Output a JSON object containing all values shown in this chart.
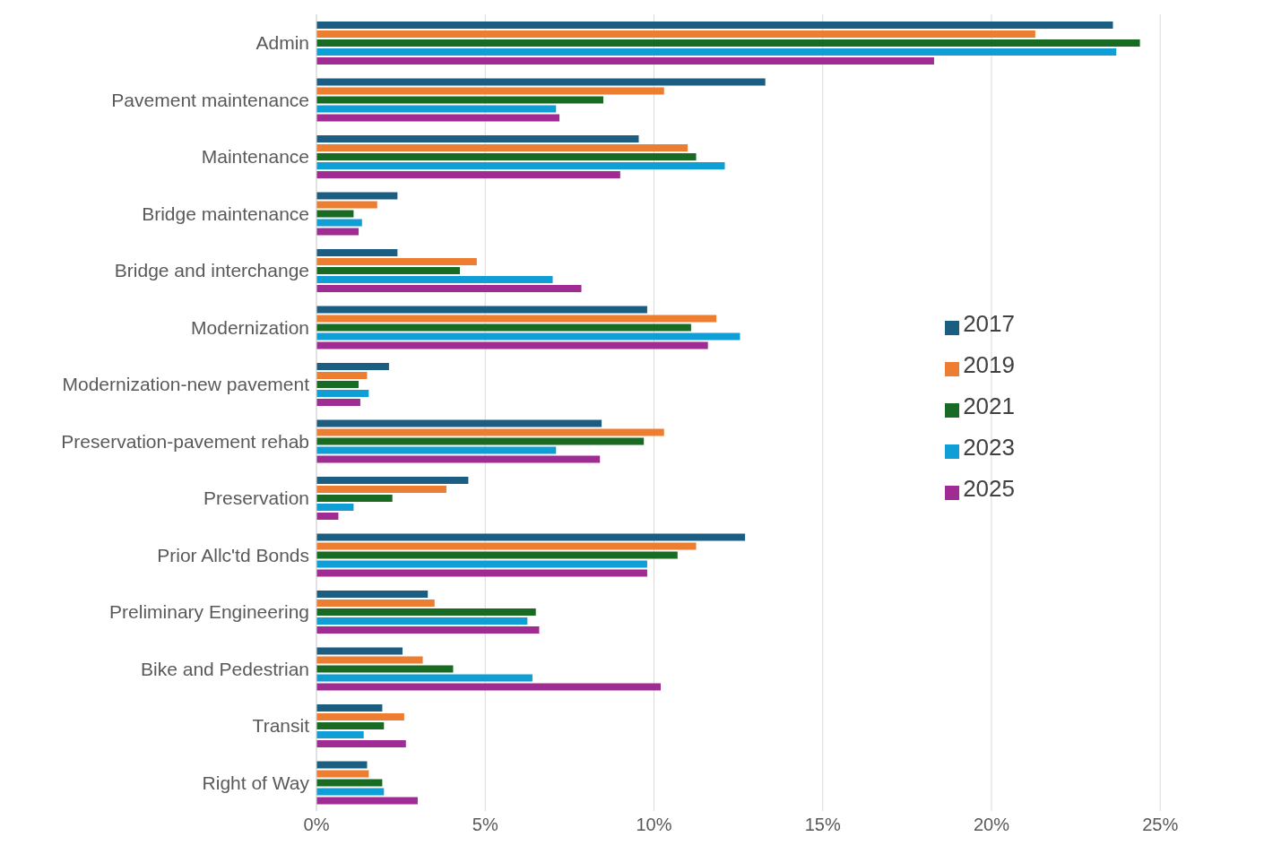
{
  "chart_data": {
    "type": "bar",
    "orientation": "horizontal",
    "categories": [
      "Admin",
      "Pavement maintenance",
      "Maintenance",
      "Bridge maintenance",
      "Bridge and interchange",
      "Modernization",
      "Modernization-new pavement",
      "Preservation-pavement rehab",
      "Preservation",
      "Prior Allc'td Bonds",
      "Preliminary Engineering",
      "Bike and Pedestrian",
      "Transit",
      "Right of Way"
    ],
    "series": [
      {
        "name": "2017",
        "color": "#1b5e82",
        "values": [
          23.6,
          13.3,
          9.55,
          2.4,
          2.4,
          9.8,
          2.15,
          8.45,
          4.5,
          12.7,
          3.3,
          2.55,
          1.95,
          1.5
        ]
      },
      {
        "name": "2019",
        "color": "#ed7d31",
        "values": [
          21.3,
          10.3,
          11.0,
          1.8,
          4.75,
          11.85,
          1.5,
          10.3,
          3.85,
          11.25,
          3.5,
          3.15,
          2.6,
          1.55
        ]
      },
      {
        "name": "2021",
        "color": "#196b24",
        "values": [
          24.4,
          8.5,
          11.25,
          1.1,
          4.25,
          11.1,
          1.25,
          9.7,
          2.25,
          10.7,
          6.5,
          4.05,
          2.0,
          1.95
        ]
      },
      {
        "name": "2023",
        "color": "#0f9ed5",
        "values": [
          23.7,
          7.1,
          12.1,
          1.35,
          7.0,
          12.55,
          1.55,
          7.1,
          1.1,
          9.8,
          6.25,
          6.4,
          1.4,
          2.0
        ]
      },
      {
        "name": "2025",
        "color": "#a02b93",
        "values": [
          18.3,
          7.2,
          9.0,
          1.25,
          7.85,
          11.6,
          1.3,
          8.4,
          0.65,
          9.8,
          6.6,
          10.2,
          2.65,
          3.0
        ]
      }
    ],
    "xlim": [
      0,
      25
    ],
    "xticks": [
      {
        "value": 0,
        "label": "0%"
      },
      {
        "value": 5,
        "label": "5%"
      },
      {
        "value": 10,
        "label": "10%"
      },
      {
        "value": 15,
        "label": "15%"
      },
      {
        "value": 20,
        "label": "20%"
      },
      {
        "value": 25,
        "label": "25%"
      }
    ],
    "grid": "x",
    "legend": "right"
  }
}
